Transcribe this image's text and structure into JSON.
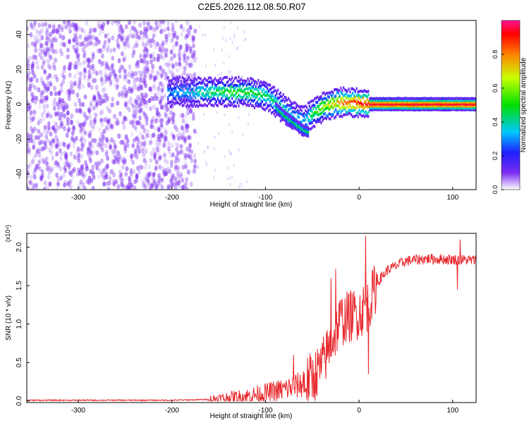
{
  "title": "C2E5.2026.112.08.50.R07",
  "chart_data": [
    {
      "type": "heatmap",
      "title": "",
      "xlabel": "Height of straight line (km)",
      "ylabel": "Frequency (Hz)",
      "xlim": [
        -355,
        125
      ],
      "ylim": [
        -49,
        48
      ],
      "x_ticks": [
        -300,
        -200,
        -100,
        0,
        100
      ],
      "x_tick_labels": [
        "-300",
        "-200",
        "-100",
        "0",
        "100"
      ],
      "y_ticks": [
        -40,
        -20,
        0,
        20,
        40
      ],
      "y_tick_labels": [
        "-40",
        "-20",
        "0",
        "20",
        "40"
      ],
      "colorbar": {
        "label": "Normalized spectral amplitude",
        "range": [
          0,
          1
        ],
        "ticks": [
          0,
          0.2,
          0.4,
          0.6,
          0.8
        ],
        "tick_labels": [
          "0.0",
          "0.2",
          "0.4",
          "0.6",
          "0.8"
        ]
      },
      "ridge": {
        "x": [
          -200,
          -180,
          -160,
          -140,
          -120,
          -100,
          -85,
          -70,
          -60,
          -50,
          -40,
          -30,
          -20,
          -10,
          0,
          10,
          50,
          100,
          125
        ],
        "y": [
          7,
          7,
          7,
          7,
          7,
          5,
          -1,
          -7,
          -10,
          -5,
          -2,
          0,
          1,
          1,
          0.5,
          0,
          0,
          0,
          0
        ],
        "amplitude": [
          0.3,
          0.35,
          0.45,
          0.5,
          0.5,
          0.45,
          0.4,
          0.35,
          0.3,
          0.5,
          0.6,
          0.7,
          0.8,
          0.85,
          0.9,
          0.95,
          0.95,
          0.95,
          0.95
        ]
      },
      "lower_branch": {
        "x": [
          -90,
          -80,
          -70,
          -60,
          -55
        ],
        "y": [
          -2,
          -7,
          -11,
          -15,
          -16
        ]
      },
      "noise_region_x": [
        -355,
        -175
      ],
      "grid": false
    },
    {
      "type": "line",
      "title": "",
      "xlabel": "Height of straight line (km)",
      "ylabel": "SNR (10 * v/v)",
      "scale_label": "(x10⁴)",
      "xlim": [
        -355,
        125
      ],
      "ylim": [
        -0.02,
        2.18
      ],
      "x_ticks": [
        -300,
        -200,
        -100,
        0,
        100
      ],
      "x_tick_labels": [
        "-300",
        "-200",
        "-100",
        "0",
        "100"
      ],
      "y_ticks": [
        0,
        0.5,
        1,
        1.5,
        2
      ],
      "y_tick_labels": [
        "0.0",
        "0.5",
        "1.0",
        "1.5",
        "2.0"
      ],
      "color": "#e8262a",
      "trend": {
        "x": [
          -355,
          -200,
          -160,
          -120,
          -100,
          -80,
          -60,
          -50,
          -40,
          -30,
          -20,
          -10,
          0,
          10,
          20,
          30,
          50,
          70,
          100,
          125
        ],
        "y": [
          0.01,
          0.01,
          0.02,
          0.06,
          0.1,
          0.15,
          0.22,
          0.3,
          0.45,
          0.75,
          1.05,
          1.1,
          1.15,
          1.25,
          1.55,
          1.7,
          1.82,
          1.85,
          1.84,
          1.83
        ]
      },
      "spikes": [
        {
          "x": 7,
          "y": 2.15
        },
        {
          "x": 10,
          "y": 0.35
        },
        {
          "x": 108,
          "y": 2.1
        },
        {
          "x": 105,
          "y": 1.45
        },
        {
          "x": -25,
          "y": 1.72
        },
        {
          "x": -30,
          "y": 1.6
        },
        {
          "x": -70,
          "y": 0.6
        }
      ],
      "grid": false
    }
  ]
}
